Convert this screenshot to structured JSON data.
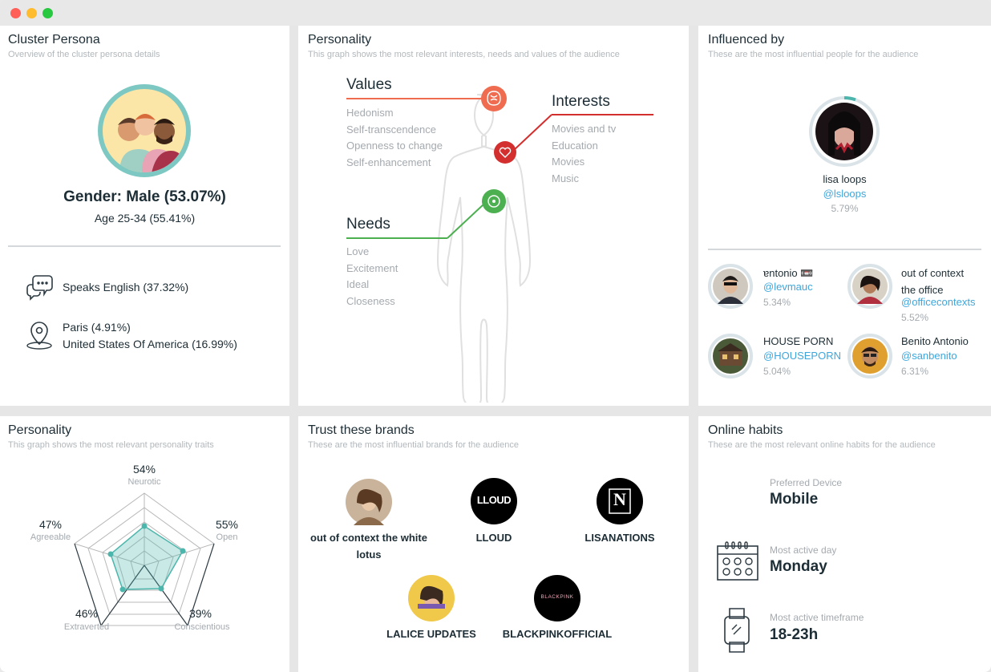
{
  "colors": {
    "accent": "#3ea6dc",
    "teal": "#4db6ac",
    "red": "#d32f2f",
    "orange": "#ef6c50",
    "green": "#4caf50"
  },
  "cluster": {
    "title": "Cluster Persona",
    "subtitle": "Overview of the cluster persona details",
    "gender": "Gender: Male (53.07%)",
    "age": "Age 25-34 (55.41%)",
    "language": "Speaks English (37.32%)",
    "city": "Paris (4.91%)",
    "country": "United States Of America (16.99%)",
    "icons": [
      "speech-bubbles-icon",
      "map-pin-icon"
    ]
  },
  "personality_map": {
    "title": "Personality",
    "subtitle": "This graph shows the most relevant interests, needs and values of the audience",
    "values": {
      "heading": "Values",
      "items": [
        "Hedonism",
        "Self-transcendence",
        "Openness to change",
        "Self-enhancement"
      ]
    },
    "interests": {
      "heading": "Interests",
      "items": [
        "Movies and tv",
        "Education",
        "Movies",
        "Music"
      ]
    },
    "needs": {
      "heading": "Needs",
      "items": [
        "Love",
        "Excitement",
        "Ideal",
        "Closeness"
      ]
    }
  },
  "influenced": {
    "title": "Influenced by",
    "subtitle": "These are the most influential people for the audience",
    "top": {
      "name": "lisa loops",
      "handle": "@lsloops",
      "pct": "5.79%"
    },
    "others": [
      {
        "name": "ɐntonio 📼",
        "handle": "@levmauc",
        "pct": "5.34%"
      },
      {
        "name": "out of context",
        "name2": "the office",
        "handle": "@officecontexts",
        "pct": "5.52%"
      },
      {
        "name": "HOUSE PORN",
        "handle": "@HOUSEPORN",
        "pct": "5.04%"
      },
      {
        "name": "Benito Antonio",
        "handle": "@sanbenito",
        "pct": "6.31%"
      }
    ]
  },
  "traits": {
    "title": "Personality",
    "subtitle": "This graph shows the most relevant personality traits",
    "axes": [
      {
        "label": "Neurotic",
        "pct": "54%"
      },
      {
        "label": "Open",
        "pct": "55%"
      },
      {
        "label": "Conscientious",
        "pct": "39%"
      },
      {
        "label": "Extraverted",
        "pct": "46%"
      },
      {
        "label": "Agreeable",
        "pct": "47%"
      }
    ]
  },
  "brands": {
    "title": "Trust these brands",
    "subtitle": "These are the most influential brands for the audience",
    "items": [
      {
        "name": "out of context the white",
        "name2": "lotus"
      },
      {
        "name": "LLOUD",
        "logo": "LLOUD"
      },
      {
        "name": "LISANATIONS",
        "logo": "N"
      },
      {
        "name": "LALICE UPDATES"
      },
      {
        "name": "BLACKPINKOFFICIAL",
        "logo": "BLACKPINK"
      }
    ]
  },
  "habits": {
    "title": "Online habits",
    "subtitle": "These are the most relevant online habits for the audience",
    "device_label": "Preferred Device",
    "device": "Mobile",
    "day_label": "Most active day",
    "day": "Monday",
    "time_label": "Most active timeframe",
    "time": "18-23h",
    "icons": [
      "calendar-icon",
      "smartwatch-icon"
    ]
  }
}
